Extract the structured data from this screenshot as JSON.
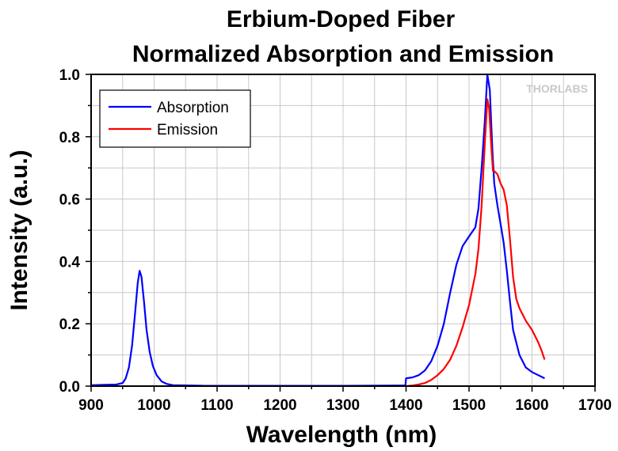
{
  "chart_data": {
    "type": "line",
    "title": [
      "Erbium-Doped Fiber",
      "Normalized Absorption and Emission"
    ],
    "xlabel": "Wavelength (nm)",
    "ylabel": "Intensity (a.u.)",
    "xlim": [
      900,
      1700
    ],
    "ylim": [
      0,
      1.0
    ],
    "x_ticks": [
      900,
      1000,
      1100,
      1200,
      1300,
      1400,
      1500,
      1600,
      1700
    ],
    "x_tick_labels": [
      "900",
      "1000",
      "1100",
      "1200",
      "1300",
      "1400",
      "1500",
      "1600",
      "1700"
    ],
    "y_ticks": [
      0,
      0.2,
      0.4,
      0.6,
      0.8,
      1.0
    ],
    "y_tick_labels": [
      "0.0",
      "0.2",
      "0.4",
      "0.6",
      "0.8",
      "1.0"
    ],
    "grid": true,
    "legend_position": "top-left",
    "watermark": "THORLABS",
    "series": [
      {
        "name": "Absorption",
        "color": "#0000ff",
        "points": [
          [
            900,
            0.003
          ],
          [
            940,
            0.005
          ],
          [
            950,
            0.01
          ],
          [
            955,
            0.025
          ],
          [
            960,
            0.06
          ],
          [
            965,
            0.13
          ],
          [
            970,
            0.24
          ],
          [
            974,
            0.33
          ],
          [
            977,
            0.37
          ],
          [
            980,
            0.35
          ],
          [
            984,
            0.27
          ],
          [
            988,
            0.18
          ],
          [
            993,
            0.11
          ],
          [
            998,
            0.065
          ],
          [
            1004,
            0.035
          ],
          [
            1012,
            0.015
          ],
          [
            1020,
            0.007
          ],
          [
            1030,
            0.003
          ],
          [
            1080,
            0.001
          ],
          [
            1200,
            0.001
          ],
          [
            1300,
            0.001
          ],
          [
            1399,
            0.002
          ],
          [
            1400,
            0.025
          ],
          [
            1410,
            0.028
          ],
          [
            1420,
            0.035
          ],
          [
            1430,
            0.05
          ],
          [
            1440,
            0.08
          ],
          [
            1450,
            0.13
          ],
          [
            1460,
            0.2
          ],
          [
            1470,
            0.3
          ],
          [
            1480,
            0.39
          ],
          [
            1490,
            0.45
          ],
          [
            1500,
            0.48
          ],
          [
            1510,
            0.51
          ],
          [
            1515,
            0.57
          ],
          [
            1520,
            0.7
          ],
          [
            1525,
            0.85
          ],
          [
            1529,
            1.0
          ],
          [
            1533,
            0.95
          ],
          [
            1537,
            0.76
          ],
          [
            1540,
            0.65
          ],
          [
            1545,
            0.58
          ],
          [
            1550,
            0.52
          ],
          [
            1555,
            0.46
          ],
          [
            1560,
            0.37
          ],
          [
            1565,
            0.27
          ],
          [
            1570,
            0.18
          ],
          [
            1580,
            0.1
          ],
          [
            1590,
            0.06
          ],
          [
            1600,
            0.045
          ],
          [
            1610,
            0.035
          ],
          [
            1620,
            0.025
          ]
        ]
      },
      {
        "name": "Emission",
        "color": "#ff0000",
        "points": [
          [
            1400,
            0.0
          ],
          [
            1410,
            0.002
          ],
          [
            1420,
            0.005
          ],
          [
            1430,
            0.01
          ],
          [
            1440,
            0.02
          ],
          [
            1450,
            0.035
          ],
          [
            1460,
            0.055
          ],
          [
            1470,
            0.085
          ],
          [
            1480,
            0.13
          ],
          [
            1490,
            0.19
          ],
          [
            1500,
            0.26
          ],
          [
            1510,
            0.36
          ],
          [
            1515,
            0.44
          ],
          [
            1520,
            0.58
          ],
          [
            1525,
            0.78
          ],
          [
            1529,
            0.92
          ],
          [
            1532,
            0.89
          ],
          [
            1535,
            0.78
          ],
          [
            1538,
            0.69
          ],
          [
            1540,
            0.69
          ],
          [
            1545,
            0.68
          ],
          [
            1550,
            0.65
          ],
          [
            1555,
            0.63
          ],
          [
            1560,
            0.58
          ],
          [
            1565,
            0.47
          ],
          [
            1570,
            0.35
          ],
          [
            1575,
            0.28
          ],
          [
            1580,
            0.25
          ],
          [
            1590,
            0.21
          ],
          [
            1600,
            0.18
          ],
          [
            1610,
            0.14
          ],
          [
            1615,
            0.115
          ],
          [
            1620,
            0.085
          ]
        ]
      }
    ]
  }
}
